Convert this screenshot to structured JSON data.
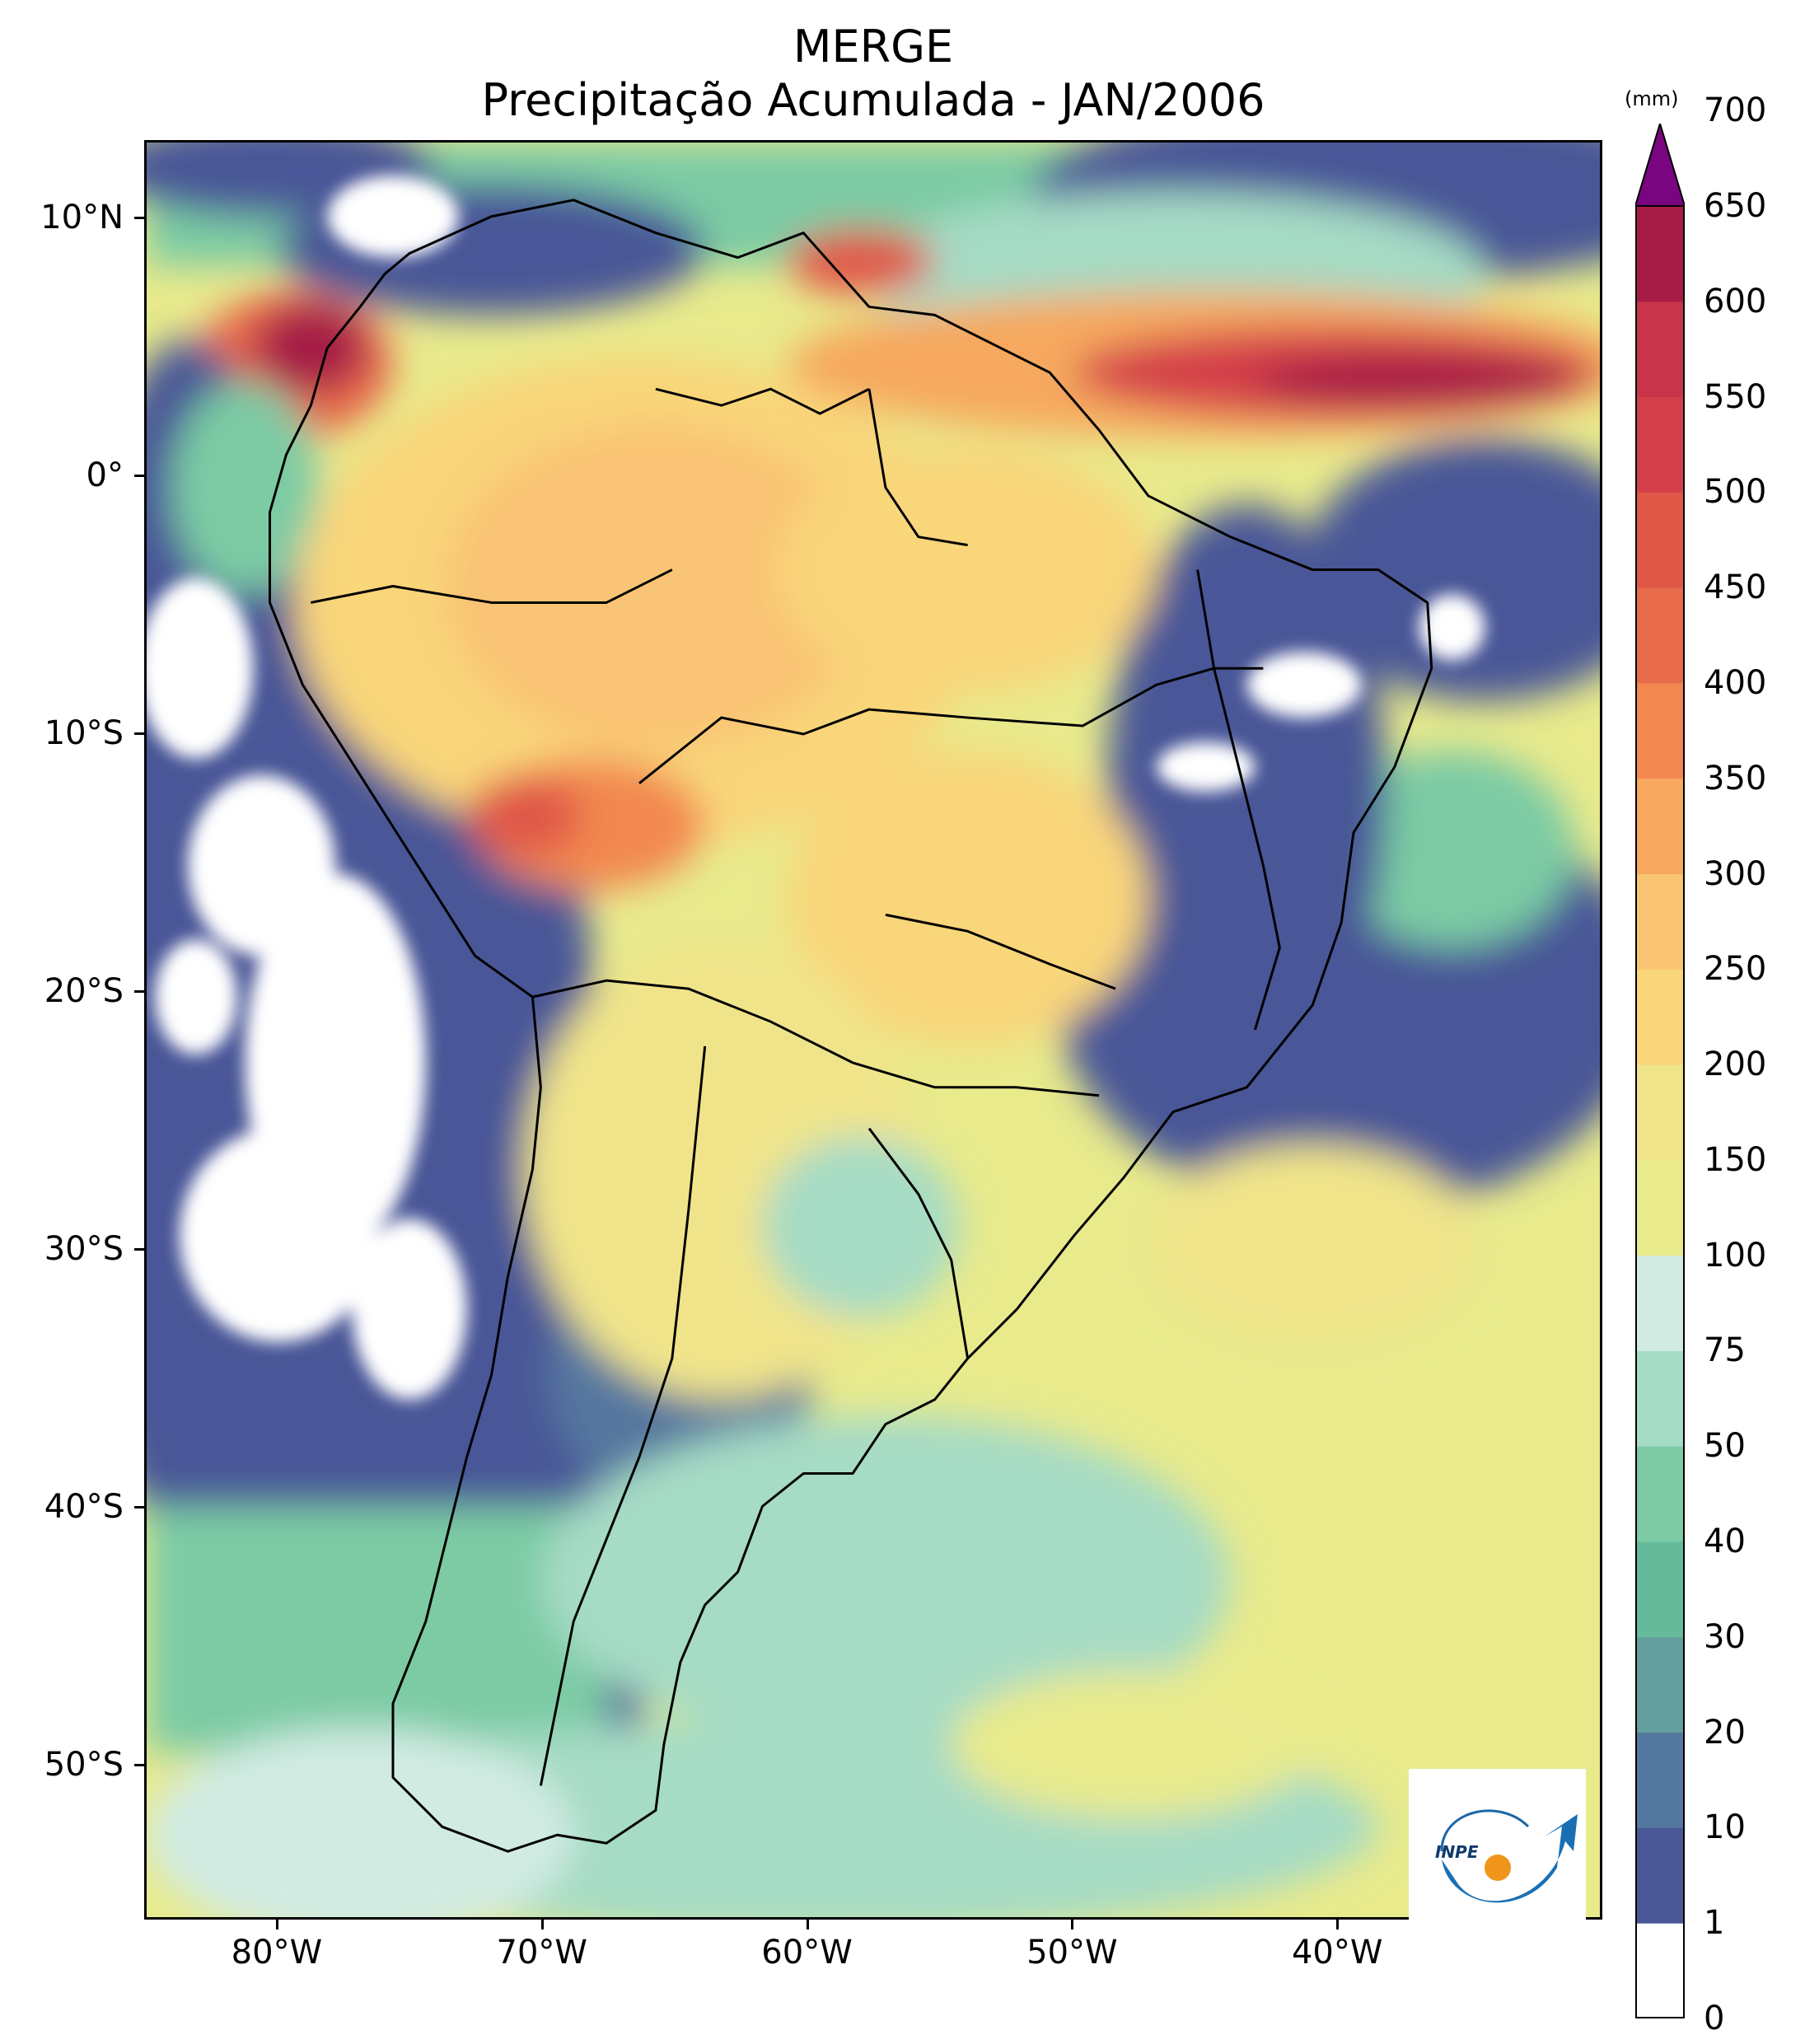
{
  "title": "MERGE",
  "subtitle": "Precipitação Acumulada - JAN/2006",
  "latitude_labels": [
    {
      "label": "10°N",
      "lat": 10
    },
    {
      "label": "0°",
      "lat": 0
    },
    {
      "label": "10°S",
      "lat": -10
    },
    {
      "label": "20°S",
      "lat": -20
    },
    {
      "label": "30°S",
      "lat": -30
    },
    {
      "label": "40°S",
      "lat": -40
    },
    {
      "label": "50°S",
      "lat": -50
    }
  ],
  "longitude_labels": [
    {
      "label": "80°W",
      "lon": -80
    },
    {
      "label": "70°W",
      "lon": -70
    },
    {
      "label": "60°W",
      "lon": -60
    },
    {
      "label": "50°W",
      "lon": -50
    },
    {
      "label": "40°W",
      "lon": -40
    }
  ],
  "map_extent": {
    "lon_min": -85,
    "lon_max": -30,
    "lat_min": -56,
    "lat_max": 13
  },
  "colorbar": {
    "unit": "(mm)",
    "levels": [
      0,
      1,
      10,
      20,
      30,
      40,
      50,
      75,
      100,
      150,
      200,
      250,
      300,
      350,
      400,
      450,
      500,
      550,
      600,
      650,
      700
    ],
    "colors": [
      "#ffffff",
      "#4a5797",
      "#54779f",
      "#639f9c",
      "#64ba9a",
      "#7ccba4",
      "#a6dbc5",
      "#d1ebe3",
      "#e8ea8c",
      "#f0e48a",
      "#f9d67a",
      "#f9c474",
      "#f6a95f",
      "#f28850",
      "#e86b4b",
      "#e05848",
      "#d4404a",
      "#c8344a",
      "#a61c46"
    ],
    "extend_color": "#7a0580"
  },
  "logo_text": "INPE"
}
